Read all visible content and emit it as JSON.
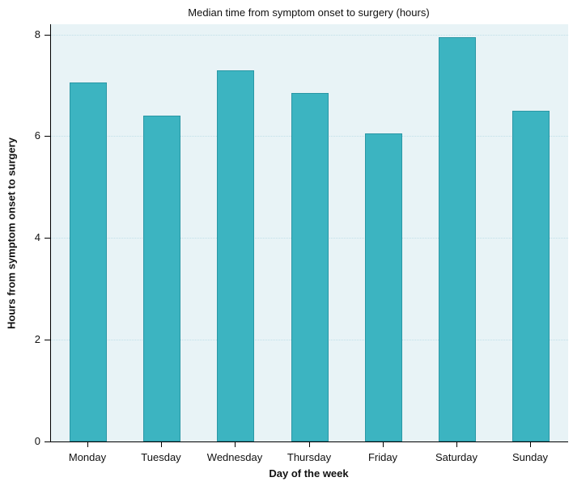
{
  "chart_data": {
    "type": "bar",
    "title": "Median time from symptom onset to surgery (hours)",
    "xlabel": "Day of the week",
    "ylabel": "Hours from symptom onset to surgery",
    "categories": [
      "Monday",
      "Tuesday",
      "Wednesday",
      "Thursday",
      "Friday",
      "Saturday",
      "Sunday"
    ],
    "values": [
      7.05,
      6.4,
      7.3,
      6.85,
      6.05,
      7.95,
      6.5
    ],
    "ylim": [
      0,
      8.2
    ],
    "yticks": [
      0,
      2,
      4,
      6,
      8
    ],
    "grid": true,
    "legend": "none",
    "bar_color": "#3cb4c1",
    "bar_border_color": "#2a97a5",
    "plot_bg": "#e8f3f6"
  }
}
